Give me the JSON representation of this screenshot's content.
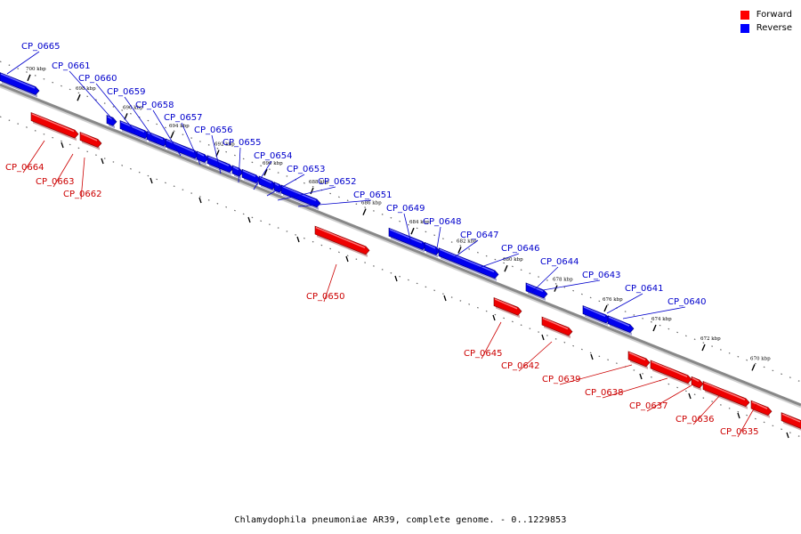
{
  "legend": {
    "forward_label": "Forward",
    "reverse_label": "Reverse",
    "forward_color": "#ff0000",
    "reverse_color": "#0000ff"
  },
  "caption": "Chlamydophila pneumoniae AR39, complete genome. - 0..1229853",
  "colors": {
    "forward_label": "#cc0000",
    "reverse_label": "#0000cc",
    "backbone": "#888888"
  },
  "ticks": [
    "700 kbp",
    "698 kbp",
    "696 kbp",
    "694 kbp",
    "692 kbp",
    "690 kbp",
    "688 kbp",
    "686 kbp",
    "684 kbp",
    "682 kbp",
    "680 kbp",
    "678 kbp",
    "676 kbp",
    "674 kbp",
    "672 kbp",
    "670 kbp"
  ],
  "genes": {
    "reverse": [
      "CP_0665",
      "CP_0661",
      "CP_0660",
      "CP_0659",
      "CP_0658",
      "CP_0657",
      "CP_0656",
      "CP_0655",
      "CP_0654",
      "CP_0653",
      "CP_0652",
      "CP_0651",
      "CP_0649",
      "CP_0648",
      "CP_0647",
      "CP_0646",
      "CP_0644",
      "CP_0643",
      "CP_0641",
      "CP_0640"
    ],
    "forward": [
      "CP_0664",
      "CP_0663",
      "CP_0662",
      "CP_0650",
      "CP_0645",
      "CP_0642",
      "CP_0639",
      "CP_0638",
      "CP_0637",
      "CP_0636",
      "CP_0635"
    ]
  }
}
